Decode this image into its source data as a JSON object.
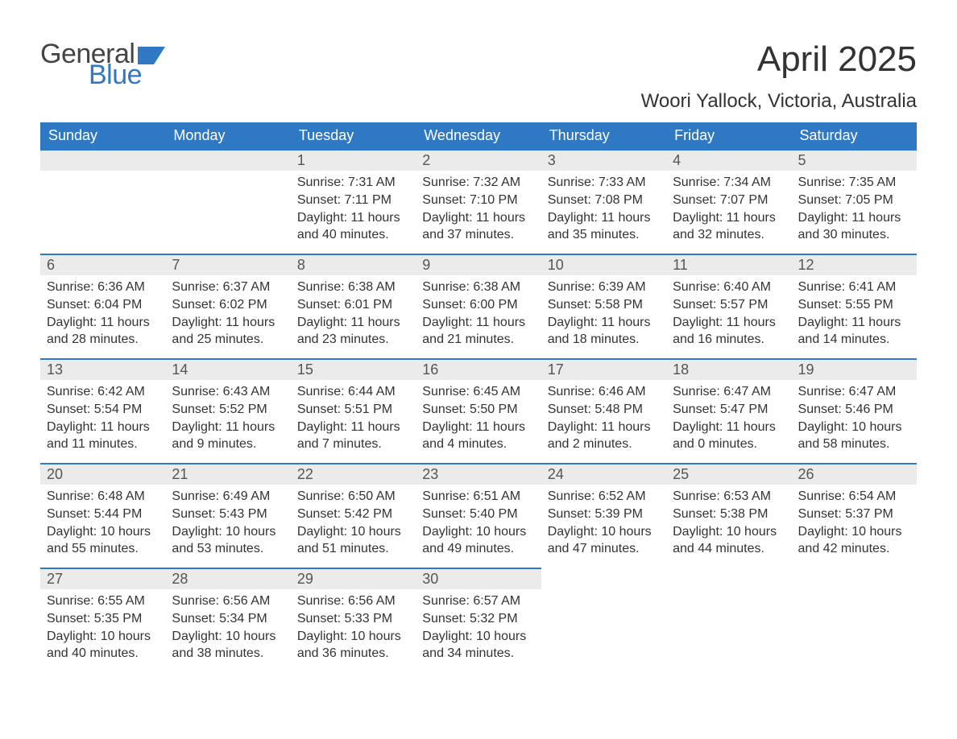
{
  "brand": {
    "word1": "General",
    "word2": "Blue",
    "word1_color": "#444444",
    "word2_color": "#2f78c4",
    "flag_color": "#2f78c4",
    "font_size": 34
  },
  "header": {
    "title": "April 2025",
    "location": "Woori Yallock, Victoria, Australia",
    "title_fontsize": 44,
    "location_fontsize": 24,
    "text_color": "#333333"
  },
  "calendar": {
    "type": "table",
    "header_bg": "#2f78c4",
    "header_text_color": "#ffffff",
    "daynum_bg": "#ebebeb",
    "daynum_border_color": "#2f78c4",
    "body_text_color": "#333333",
    "daynum_text_color": "#555555",
    "header_fontsize": 18,
    "daynum_fontsize": 18,
    "body_fontsize": 16,
    "columns": [
      "Sunday",
      "Monday",
      "Tuesday",
      "Wednesday",
      "Thursday",
      "Friday",
      "Saturday"
    ],
    "weeks": [
      [
        null,
        null,
        {
          "n": "1",
          "sunrise": "7:31 AM",
          "sunset": "7:11 PM",
          "daylight": "11 hours and 40 minutes."
        },
        {
          "n": "2",
          "sunrise": "7:32 AM",
          "sunset": "7:10 PM",
          "daylight": "11 hours and 37 minutes."
        },
        {
          "n": "3",
          "sunrise": "7:33 AM",
          "sunset": "7:08 PM",
          "daylight": "11 hours and 35 minutes."
        },
        {
          "n": "4",
          "sunrise": "7:34 AM",
          "sunset": "7:07 PM",
          "daylight": "11 hours and 32 minutes."
        },
        {
          "n": "5",
          "sunrise": "7:35 AM",
          "sunset": "7:05 PM",
          "daylight": "11 hours and 30 minutes."
        }
      ],
      [
        {
          "n": "6",
          "sunrise": "6:36 AM",
          "sunset": "6:04 PM",
          "daylight": "11 hours and 28 minutes."
        },
        {
          "n": "7",
          "sunrise": "6:37 AM",
          "sunset": "6:02 PM",
          "daylight": "11 hours and 25 minutes."
        },
        {
          "n": "8",
          "sunrise": "6:38 AM",
          "sunset": "6:01 PM",
          "daylight": "11 hours and 23 minutes."
        },
        {
          "n": "9",
          "sunrise": "6:38 AM",
          "sunset": "6:00 PM",
          "daylight": "11 hours and 21 minutes."
        },
        {
          "n": "10",
          "sunrise": "6:39 AM",
          "sunset": "5:58 PM",
          "daylight": "11 hours and 18 minutes."
        },
        {
          "n": "11",
          "sunrise": "6:40 AM",
          "sunset": "5:57 PM",
          "daylight": "11 hours and 16 minutes."
        },
        {
          "n": "12",
          "sunrise": "6:41 AM",
          "sunset": "5:55 PM",
          "daylight": "11 hours and 14 minutes."
        }
      ],
      [
        {
          "n": "13",
          "sunrise": "6:42 AM",
          "sunset": "5:54 PM",
          "daylight": "11 hours and 11 minutes."
        },
        {
          "n": "14",
          "sunrise": "6:43 AM",
          "sunset": "5:52 PM",
          "daylight": "11 hours and 9 minutes."
        },
        {
          "n": "15",
          "sunrise": "6:44 AM",
          "sunset": "5:51 PM",
          "daylight": "11 hours and 7 minutes."
        },
        {
          "n": "16",
          "sunrise": "6:45 AM",
          "sunset": "5:50 PM",
          "daylight": "11 hours and 4 minutes."
        },
        {
          "n": "17",
          "sunrise": "6:46 AM",
          "sunset": "5:48 PM",
          "daylight": "11 hours and 2 minutes."
        },
        {
          "n": "18",
          "sunrise": "6:47 AM",
          "sunset": "5:47 PM",
          "daylight": "11 hours and 0 minutes."
        },
        {
          "n": "19",
          "sunrise": "6:47 AM",
          "sunset": "5:46 PM",
          "daylight": "10 hours and 58 minutes."
        }
      ],
      [
        {
          "n": "20",
          "sunrise": "6:48 AM",
          "sunset": "5:44 PM",
          "daylight": "10 hours and 55 minutes."
        },
        {
          "n": "21",
          "sunrise": "6:49 AM",
          "sunset": "5:43 PM",
          "daylight": "10 hours and 53 minutes."
        },
        {
          "n": "22",
          "sunrise": "6:50 AM",
          "sunset": "5:42 PM",
          "daylight": "10 hours and 51 minutes."
        },
        {
          "n": "23",
          "sunrise": "6:51 AM",
          "sunset": "5:40 PM",
          "daylight": "10 hours and 49 minutes."
        },
        {
          "n": "24",
          "sunrise": "6:52 AM",
          "sunset": "5:39 PM",
          "daylight": "10 hours and 47 minutes."
        },
        {
          "n": "25",
          "sunrise": "6:53 AM",
          "sunset": "5:38 PM",
          "daylight": "10 hours and 44 minutes."
        },
        {
          "n": "26",
          "sunrise": "6:54 AM",
          "sunset": "5:37 PM",
          "daylight": "10 hours and 42 minutes."
        }
      ],
      [
        {
          "n": "27",
          "sunrise": "6:55 AM",
          "sunset": "5:35 PM",
          "daylight": "10 hours and 40 minutes."
        },
        {
          "n": "28",
          "sunrise": "6:56 AM",
          "sunset": "5:34 PM",
          "daylight": "10 hours and 38 minutes."
        },
        {
          "n": "29",
          "sunrise": "6:56 AM",
          "sunset": "5:33 PM",
          "daylight": "10 hours and 36 minutes."
        },
        {
          "n": "30",
          "sunrise": "6:57 AM",
          "sunset": "5:32 PM",
          "daylight": "10 hours and 34 minutes."
        },
        null,
        null,
        null
      ]
    ],
    "labels": {
      "sunrise": "Sunrise:",
      "sunset": "Sunset:",
      "daylight": "Daylight:"
    }
  }
}
